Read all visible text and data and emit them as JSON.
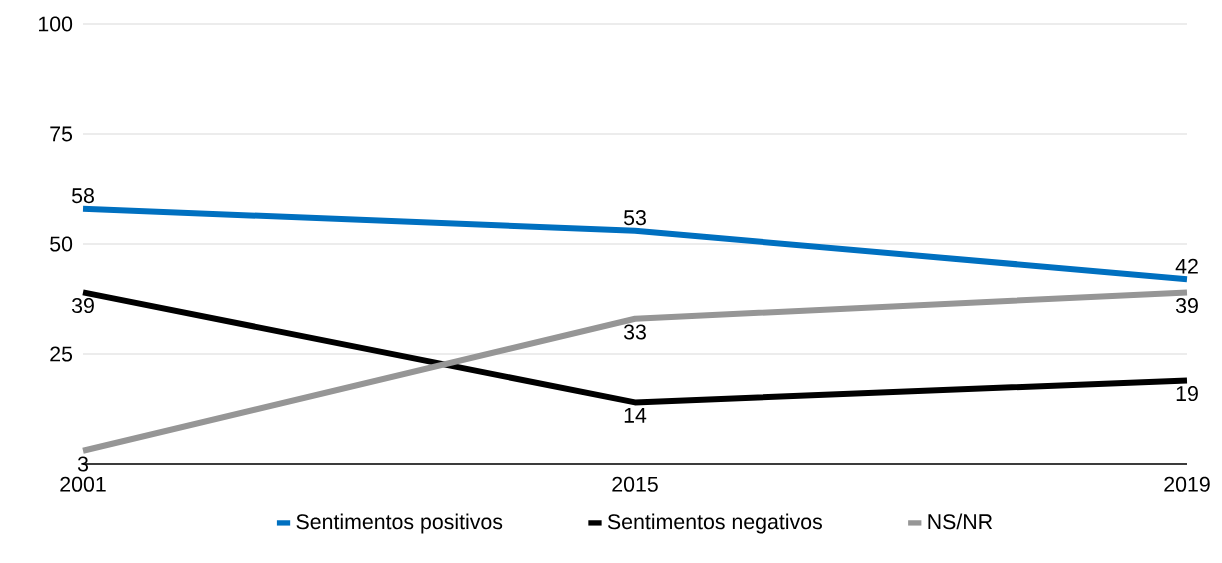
{
  "chart_data": {
    "type": "line",
    "categories": [
      "2001",
      "2015",
      "2019"
    ],
    "series": [
      {
        "name": "Sentimentos positivos",
        "color": "#0070c0",
        "values": [
          58,
          53,
          42
        ]
      },
      {
        "name": "Sentimentos negativos",
        "color": "#000000",
        "values": [
          39,
          14,
          19
        ]
      },
      {
        "name": "NS/NR",
        "color": "#969696",
        "values": [
          3,
          33,
          39
        ]
      }
    ],
    "ylim": [
      0,
      100
    ],
    "yticks": [
      {
        "value": 0,
        "label": null
      },
      25,
      50,
      75,
      100
    ],
    "grid": "y",
    "legend": "bottom",
    "data_labels": true,
    "marker": "none",
    "line_style": "solid"
  }
}
